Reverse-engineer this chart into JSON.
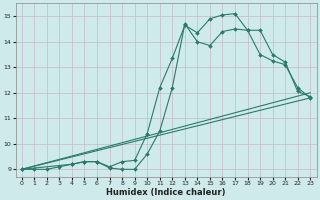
{
  "title": "",
  "xlabel": "Humidex (Indice chaleur)",
  "ylabel": "",
  "xlim": [
    -0.5,
    23.5
  ],
  "ylim": [
    8.7,
    15.5
  ],
  "xticks": [
    0,
    1,
    2,
    3,
    4,
    5,
    6,
    7,
    8,
    9,
    10,
    11,
    12,
    13,
    14,
    15,
    16,
    17,
    18,
    19,
    20,
    21,
    22,
    23
  ],
  "yticks": [
    9,
    10,
    11,
    12,
    13,
    14,
    15
  ],
  "bg_color": "#ceeaea",
  "grid_color": "#c8b8c8",
  "line_color": "#2a7a6a",
  "series": [
    {
      "x": [
        0,
        1,
        2,
        3,
        4,
        5,
        6,
        7,
        8,
        9,
        10,
        11,
        12,
        13,
        14,
        15,
        16,
        17,
        18,
        19,
        20,
        21,
        22,
        23
      ],
      "y": [
        9.0,
        9.0,
        9.0,
        9.1,
        9.2,
        9.3,
        9.3,
        9.05,
        9.0,
        9.0,
        9.6,
        10.5,
        12.2,
        14.7,
        14.0,
        13.85,
        14.4,
        14.5,
        14.45,
        13.5,
        13.25,
        13.1,
        12.2,
        11.8
      ],
      "markers": true
    },
    {
      "x": [
        0,
        4,
        5,
        6,
        7,
        8,
        9,
        10,
        11,
        12,
        13,
        14,
        15,
        16,
        17,
        18,
        19,
        20,
        21,
        22,
        23
      ],
      "y": [
        9.0,
        9.2,
        9.3,
        9.3,
        9.1,
        9.3,
        9.35,
        10.4,
        12.2,
        13.35,
        14.65,
        14.35,
        14.9,
        15.05,
        15.1,
        14.45,
        14.45,
        13.5,
        13.2,
        12.05,
        11.85
      ],
      "markers": true
    },
    {
      "x": [
        0,
        23
      ],
      "y": [
        9.0,
        12.0
      ],
      "markers": false
    },
    {
      "x": [
        0,
        23
      ],
      "y": [
        9.0,
        11.8
      ],
      "markers": false
    }
  ]
}
